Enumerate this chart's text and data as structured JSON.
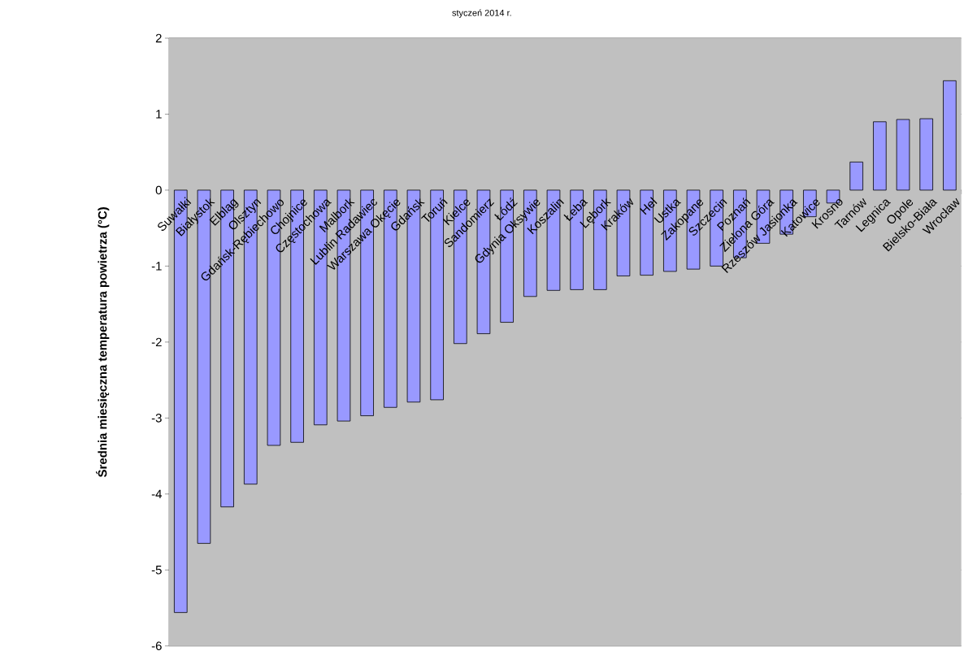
{
  "chart_data": {
    "type": "bar",
    "title": "styczeń 2014 r.",
    "ylabel": "Średnia miesięczna temperatura powietrza (°C)",
    "categories": [
      "Suwałki",
      "Białystok",
      "Elbląg",
      "Olsztyn",
      "Gdańsk-Rębiechowo",
      "Chojnice",
      "Częstochowa",
      "Malbork",
      "Lublin Radawiec",
      "Warszawa Okęcie",
      "Gdańsk",
      "Toruń",
      "Kielce",
      "Sandomierz",
      "Łódź",
      "Gdynia Oksywie",
      "Koszalin",
      "Łeba",
      "Lębork",
      "Kraków",
      "Hel",
      "Ustka",
      "Zakopane",
      "Szczecin",
      "Poznań",
      "Zielona Góra",
      "Rzeszów Jasionka",
      "Katowice",
      "Krosno",
      "Tarnów",
      "Legnica",
      "Opole",
      "Bielsko-Biała",
      "Wrocław"
    ],
    "values": [
      -5.56,
      -4.65,
      -4.17,
      -3.87,
      -3.36,
      -3.32,
      -3.09,
      -3.04,
      -2.97,
      -2.86,
      -2.79,
      -2.76,
      -2.02,
      -1.89,
      -1.74,
      -1.4,
      -1.32,
      -1.31,
      -1.31,
      -1.13,
      -1.12,
      -1.07,
      -1.04,
      -1.0,
      -0.89,
      -0.7,
      -0.58,
      -0.35,
      -0.17,
      0.37,
      0.9,
      0.93,
      0.94,
      1.44
    ],
    "color": "#9999ff",
    "ylim": [
      -6,
      2
    ],
    "yticks": [
      -6,
      -5,
      -4,
      -3,
      -2,
      -1,
      0,
      1,
      2
    ],
    "grid": "y"
  }
}
